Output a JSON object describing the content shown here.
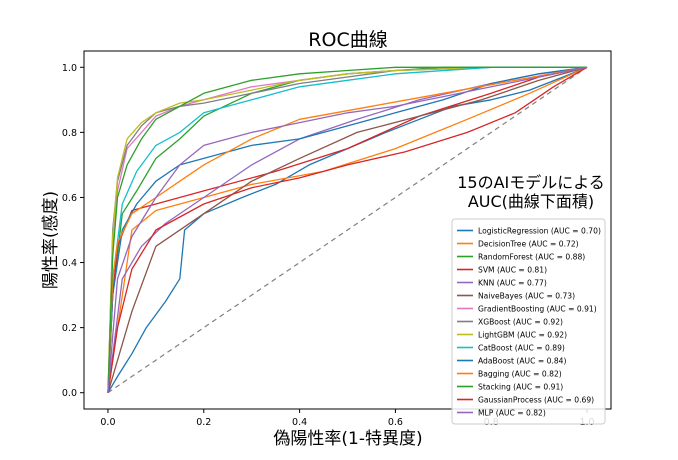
{
  "chart_data": {
    "type": "line",
    "title": "ROC曲線",
    "xlabel": "偽陽性率(1-特異度)",
    "ylabel": "陽性率(感度)",
    "annotation": [
      "15のAIモデルによる",
      "AUC(曲線下面積)"
    ],
    "xlim": [
      -0.05,
      1.05
    ],
    "ylim": [
      -0.05,
      1.05
    ],
    "xticks": [
      "0.0",
      "0.2",
      "0.4",
      "0.6",
      "0.8",
      "1.0"
    ],
    "yticks": [
      "0.0",
      "0.2",
      "0.4",
      "0.6",
      "0.8",
      "1.0"
    ],
    "grid": false,
    "legend_position": "lower-right",
    "diagonal": {
      "x": [
        0,
        1
      ],
      "y": [
        0,
        1
      ],
      "style": "dashed",
      "color": "#808080"
    },
    "series": [
      {
        "name": "LogisticRegression (AUC = 0.70)",
        "color": "#1f77b4",
        "x": [
          0,
          0.02,
          0.05,
          0.08,
          0.12,
          0.15,
          0.16,
          0.2,
          0.28,
          0.35,
          0.42,
          0.5,
          0.58,
          0.65,
          0.72,
          0.8,
          0.88,
          0.95,
          1.0
        ],
        "y": [
          0,
          0.05,
          0.12,
          0.2,
          0.28,
          0.35,
          0.5,
          0.55,
          0.6,
          0.64,
          0.7,
          0.75,
          0.8,
          0.84,
          0.88,
          0.9,
          0.93,
          0.97,
          1.0
        ]
      },
      {
        "name": "DecisionTree (AUC = 0.72)",
        "color": "#ff7f0e",
        "x": [
          0,
          0.05,
          0.1,
          0.2,
          0.3,
          0.45,
          0.6,
          0.75,
          0.88,
          1.0
        ],
        "y": [
          0,
          0.5,
          0.56,
          0.6,
          0.64,
          0.68,
          0.75,
          0.84,
          0.92,
          1.0
        ]
      },
      {
        "name": "RandomForest (AUC = 0.88)",
        "color": "#2ca02c",
        "x": [
          0,
          0.01,
          0.03,
          0.06,
          0.1,
          0.15,
          0.2,
          0.3,
          0.4,
          0.5,
          0.6,
          0.7,
          0.8,
          0.9,
          1.0
        ],
        "y": [
          0,
          0.3,
          0.55,
          0.62,
          0.72,
          0.78,
          0.85,
          0.92,
          0.96,
          0.98,
          0.99,
          1.0,
          1.0,
          1.0,
          1.0
        ]
      },
      {
        "name": "SVM (AUC = 0.81)",
        "color": "#d62728",
        "x": [
          0,
          0.01,
          0.02,
          0.05,
          0.1,
          0.2,
          0.35,
          0.5,
          0.65,
          0.8,
          0.9,
          1.0
        ],
        "y": [
          0,
          0.3,
          0.45,
          0.56,
          0.58,
          0.62,
          0.68,
          0.75,
          0.85,
          0.92,
          0.97,
          1.0
        ]
      },
      {
        "name": "KNN (AUC = 0.77)",
        "color": "#9467bd",
        "x": [
          0,
          0.03,
          0.07,
          0.12,
          0.2,
          0.3,
          0.4,
          0.52,
          0.65,
          0.8,
          0.9,
          1.0
        ],
        "y": [
          0,
          0.35,
          0.45,
          0.52,
          0.6,
          0.7,
          0.78,
          0.84,
          0.9,
          0.95,
          0.98,
          1.0
        ]
      },
      {
        "name": "NaiveBayes (AUC = 0.73)",
        "color": "#8c564b",
        "x": [
          0,
          0.05,
          0.1,
          0.2,
          0.3,
          0.4,
          0.52,
          0.65,
          0.78,
          0.9,
          1.0
        ],
        "y": [
          0,
          0.25,
          0.45,
          0.55,
          0.65,
          0.72,
          0.8,
          0.85,
          0.9,
          0.96,
          1.0
        ]
      },
      {
        "name": "GradientBoosting (AUC = 0.91)",
        "color": "#e377c2",
        "x": [
          0,
          0.01,
          0.02,
          0.04,
          0.07,
          0.1,
          0.15,
          0.2,
          0.3,
          0.4,
          0.5,
          0.6,
          0.8,
          1.0
        ],
        "y": [
          0,
          0.45,
          0.62,
          0.75,
          0.8,
          0.85,
          0.88,
          0.9,
          0.94,
          0.96,
          0.98,
          0.99,
          1.0,
          1.0
        ]
      },
      {
        "name": "XGBoost (AUC = 0.92)",
        "color": "#7f7f7f",
        "x": [
          0,
          0.01,
          0.02,
          0.04,
          0.07,
          0.1,
          0.15,
          0.2,
          0.3,
          0.4,
          0.5,
          0.6,
          0.8,
          1.0
        ],
        "y": [
          0,
          0.5,
          0.65,
          0.76,
          0.82,
          0.86,
          0.88,
          0.89,
          0.92,
          0.95,
          0.97,
          0.99,
          1.0,
          1.0
        ]
      },
      {
        "name": "LightGBM (AUC = 0.92)",
        "color": "#bcbd22",
        "x": [
          0,
          0.01,
          0.02,
          0.04,
          0.07,
          0.1,
          0.15,
          0.2,
          0.3,
          0.4,
          0.5,
          0.6,
          0.8,
          1.0
        ],
        "y": [
          0,
          0.48,
          0.66,
          0.78,
          0.83,
          0.86,
          0.89,
          0.9,
          0.93,
          0.96,
          0.98,
          0.99,
          1.0,
          1.0
        ]
      },
      {
        "name": "CatBoost (AUC = 0.89)",
        "color": "#17becf",
        "x": [
          0,
          0.01,
          0.03,
          0.06,
          0.1,
          0.15,
          0.2,
          0.3,
          0.4,
          0.5,
          0.6,
          0.8,
          1.0
        ],
        "y": [
          0,
          0.35,
          0.58,
          0.68,
          0.76,
          0.8,
          0.86,
          0.9,
          0.94,
          0.96,
          0.98,
          1.0,
          1.0
        ]
      },
      {
        "name": "AdaBoost (AUC = 0.84)",
        "color": "#1f77b4",
        "x": [
          0,
          0.01,
          0.03,
          0.06,
          0.1,
          0.15,
          0.2,
          0.3,
          0.4,
          0.5,
          0.6,
          0.7,
          0.8,
          0.9,
          1.0
        ],
        "y": [
          0,
          0.3,
          0.5,
          0.58,
          0.65,
          0.7,
          0.72,
          0.76,
          0.78,
          0.82,
          0.86,
          0.9,
          0.95,
          0.98,
          1.0
        ]
      },
      {
        "name": "Bagging (AUC = 0.82)",
        "color": "#ff7f0e",
        "x": [
          0,
          0.01,
          0.02,
          0.05,
          0.1,
          0.15,
          0.2,
          0.3,
          0.4,
          0.55,
          0.7,
          0.85,
          1.0
        ],
        "y": [
          0,
          0.35,
          0.46,
          0.55,
          0.6,
          0.65,
          0.7,
          0.78,
          0.84,
          0.88,
          0.92,
          0.96,
          1.0
        ]
      },
      {
        "name": "Stacking (AUC = 0.91)",
        "color": "#2ca02c",
        "x": [
          0,
          0.01,
          0.02,
          0.04,
          0.07,
          0.1,
          0.15,
          0.2,
          0.3,
          0.4,
          0.5,
          0.6,
          0.8,
          1.0
        ],
        "y": [
          0,
          0.42,
          0.6,
          0.7,
          0.78,
          0.84,
          0.88,
          0.92,
          0.96,
          0.98,
          0.99,
          1.0,
          1.0,
          1.0
        ]
      },
      {
        "name": "GaussianProcess (AUC = 0.69)",
        "color": "#d62728",
        "x": [
          0,
          0.02,
          0.05,
          0.1,
          0.2,
          0.3,
          0.4,
          0.5,
          0.62,
          0.75,
          0.85,
          0.93,
          1.0
        ],
        "y": [
          0,
          0.2,
          0.38,
          0.5,
          0.58,
          0.63,
          0.66,
          0.7,
          0.74,
          0.8,
          0.86,
          0.94,
          1.0
        ]
      },
      {
        "name": "MLP (AUC = 0.82)",
        "color": "#9467bd",
        "x": [
          0,
          0.02,
          0.05,
          0.1,
          0.15,
          0.2,
          0.3,
          0.4,
          0.5,
          0.6,
          0.7,
          0.8,
          0.9,
          1.0
        ],
        "y": [
          0,
          0.35,
          0.48,
          0.6,
          0.7,
          0.76,
          0.8,
          0.83,
          0.86,
          0.88,
          0.91,
          0.94,
          0.97,
          1.0
        ]
      }
    ]
  }
}
